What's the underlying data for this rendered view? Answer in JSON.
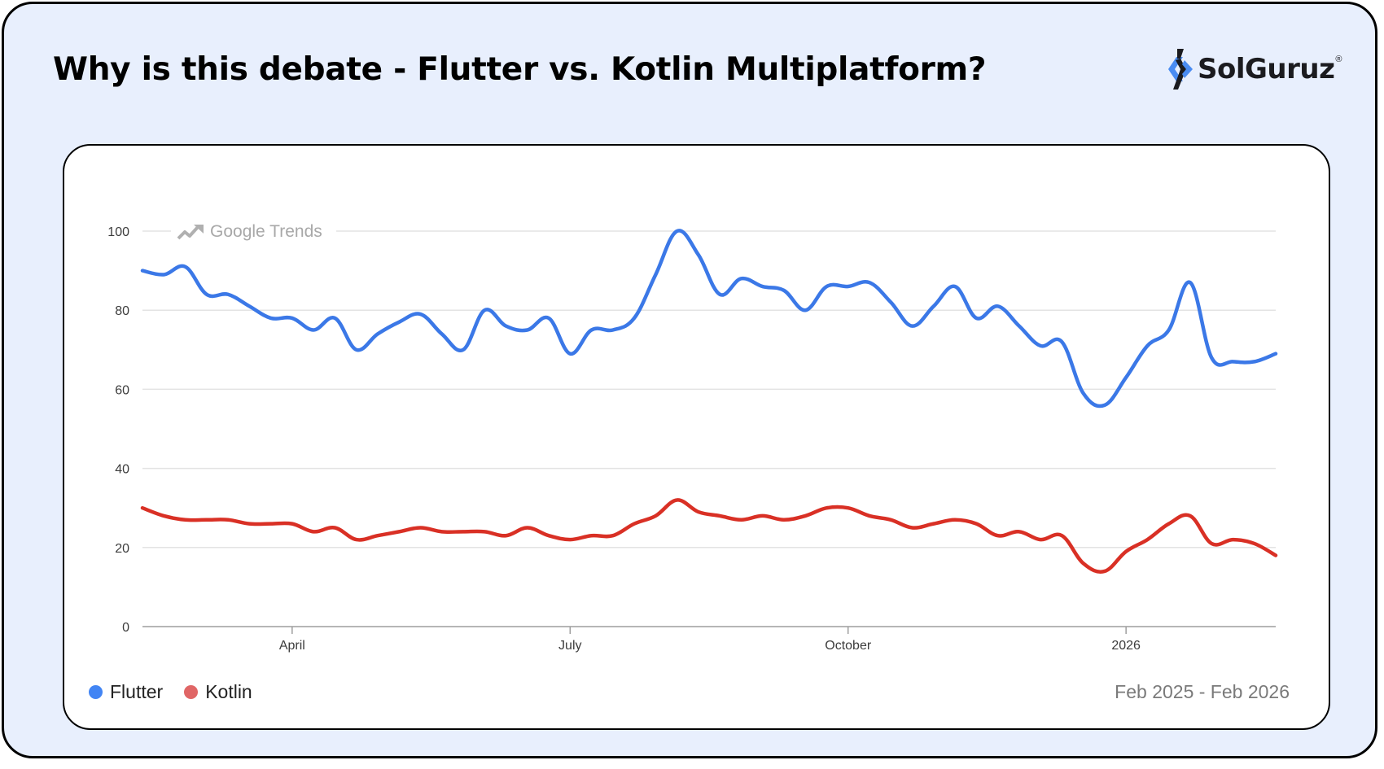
{
  "header": {
    "title": "Why is this debate - Flutter vs. Kotlin Multiplatform?",
    "brand": "SolGuruz",
    "brand_mark": "®"
  },
  "chart": {
    "watermark": "Google Trends",
    "date_range": "Feb 2025  - Feb 2026",
    "legend": [
      {
        "label": "Flutter",
        "color": "#4285f4"
      },
      {
        "label": "Kotlin",
        "color": "#e06666"
      }
    ]
  },
  "chart_data": {
    "type": "line",
    "title": "Why is this debate - Flutter vs. Kotlin Multiplatform?",
    "source": "Google Trends",
    "xlabel": "",
    "ylabel": "",
    "ylim": [
      0,
      100
    ],
    "yticks": [
      0,
      20,
      40,
      60,
      80,
      100
    ],
    "xticks": [
      {
        "label": "April",
        "index": 7
      },
      {
        "label": "July",
        "index": 20
      },
      {
        "label": "October",
        "index": 33
      },
      {
        "label": "2026",
        "index": 46
      }
    ],
    "grid": true,
    "legend_position": "bottom-left",
    "date_range": "Feb 2025 - Feb 2026",
    "series": [
      {
        "name": "Flutter",
        "color": "#3b78e7",
        "values": [
          90,
          89,
          91,
          84,
          84,
          81,
          78,
          78,
          75,
          78,
          70,
          74,
          77,
          79,
          74,
          70,
          80,
          76,
          75,
          78,
          69,
          75,
          75,
          78,
          89,
          100,
          94,
          84,
          88,
          86,
          85,
          80,
          86,
          86,
          87,
          82,
          76,
          81,
          86,
          78,
          81,
          76,
          71,
          72,
          59,
          56,
          63,
          71,
          75,
          87,
          68,
          67,
          67,
          69
        ]
      },
      {
        "name": "Kotlin",
        "color": "#d93025",
        "values": [
          30,
          28,
          27,
          27,
          27,
          26,
          26,
          26,
          24,
          25,
          22,
          23,
          24,
          25,
          24,
          24,
          24,
          23,
          25,
          23,
          22,
          23,
          23,
          26,
          28,
          32,
          29,
          28,
          27,
          28,
          27,
          28,
          30,
          30,
          28,
          27,
          25,
          26,
          27,
          26,
          23,
          24,
          22,
          23,
          16,
          14,
          19,
          22,
          26,
          28,
          21,
          22,
          21,
          18
        ]
      }
    ]
  }
}
